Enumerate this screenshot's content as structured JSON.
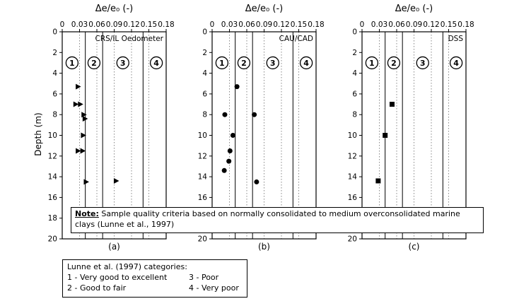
{
  "figure": {
    "ylabel": "Depth (m)",
    "note": {
      "prefix": "Note:",
      "text": " Sample quality criteria based on normally consolidated to medium overconsolidated marine clays (Lunne et al., 1997)"
    },
    "legend": {
      "title": "Lunne et al. (1997) categories:",
      "items": [
        "1 - Very good to excellent",
        "2 - Good to fair",
        "3 - Poor",
        "4 - Very poor"
      ]
    }
  },
  "chart_data": [
    {
      "type": "scatter",
      "panel": "a",
      "caption": "(a)",
      "title": "Δe/e₀ (-)",
      "dataset_label": "CRS/IL Oedometer",
      "marker": "triangle-right",
      "xlabel": "Δe/e₀ (-)",
      "ylabel": "Depth (m)",
      "xlim": [
        0,
        0.18
      ],
      "ylim": [
        0,
        20
      ],
      "xticks": [
        0,
        0.03,
        0.06,
        0.09,
        0.12,
        0.15,
        0.18
      ],
      "xtick_labels": [
        "0",
        "0.03",
        "0.06",
        "0.09",
        "0.12",
        "0.15",
        "0.18"
      ],
      "yticks": [
        0,
        2,
        4,
        6,
        8,
        10,
        12,
        14,
        16,
        18,
        20
      ],
      "grid": "vertical-dotted-at-ticks",
      "category_boundaries": [
        0.04,
        0.07,
        0.14
      ],
      "category_markers": [
        {
          "label": "1",
          "x": 0.017,
          "depth": 3
        },
        {
          "label": "2",
          "x": 0.055,
          "depth": 3
        },
        {
          "label": "3",
          "x": 0.105,
          "depth": 3
        },
        {
          "label": "4",
          "x": 0.163,
          "depth": 3
        }
      ],
      "points": [
        {
          "x": 0.027,
          "depth": 5.3
        },
        {
          "x": 0.023,
          "depth": 7.0
        },
        {
          "x": 0.031,
          "depth": 7.0
        },
        {
          "x": 0.037,
          "depth": 8.0
        },
        {
          "x": 0.039,
          "depth": 8.4
        },
        {
          "x": 0.036,
          "depth": 10.0
        },
        {
          "x": 0.027,
          "depth": 11.5
        },
        {
          "x": 0.035,
          "depth": 11.5
        },
        {
          "x": 0.041,
          "depth": 14.5
        },
        {
          "x": 0.093,
          "depth": 14.4
        }
      ]
    },
    {
      "type": "scatter",
      "panel": "b",
      "caption": "(b)",
      "title": "Δe/e₀ (-)",
      "dataset_label": "CAU/CAD",
      "marker": "circle",
      "xlabel": "Δe/e₀ (-)",
      "ylabel": "Depth (m)",
      "xlim": [
        0,
        0.18
      ],
      "ylim": [
        0,
        20
      ],
      "xticks": [
        0,
        0.03,
        0.06,
        0.09,
        0.12,
        0.15,
        0.18
      ],
      "xtick_labels": [
        "0",
        "0.03",
        "0.06",
        "0.09",
        "0.12",
        "0.15",
        "0.18"
      ],
      "yticks": [
        0,
        2,
        4,
        6,
        8,
        10,
        12,
        14,
        16,
        18,
        20
      ],
      "grid": "vertical-dotted-at-ticks",
      "category_boundaries": [
        0.04,
        0.07,
        0.14
      ],
      "category_markers": [
        {
          "label": "1",
          "x": 0.017,
          "depth": 3
        },
        {
          "label": "2",
          "x": 0.055,
          "depth": 3
        },
        {
          "label": "3",
          "x": 0.105,
          "depth": 3
        },
        {
          "label": "4",
          "x": 0.163,
          "depth": 3
        }
      ],
      "points": [
        {
          "x": 0.043,
          "depth": 5.3
        },
        {
          "x": 0.022,
          "depth": 8.0
        },
        {
          "x": 0.073,
          "depth": 8.0
        },
        {
          "x": 0.036,
          "depth": 10.0
        },
        {
          "x": 0.031,
          "depth": 11.5
        },
        {
          "x": 0.029,
          "depth": 12.5
        },
        {
          "x": 0.021,
          "depth": 13.4
        },
        {
          "x": 0.077,
          "depth": 14.5
        }
      ]
    },
    {
      "type": "scatter",
      "panel": "c",
      "caption": "(c)",
      "title": "Δe/e₀ (-)",
      "dataset_label": "DSS",
      "marker": "square",
      "xlabel": "Δe/e₀ (-)",
      "ylabel": "Depth (m)",
      "xlim": [
        0,
        0.18
      ],
      "ylim": [
        0,
        20
      ],
      "xticks": [
        0,
        0.03,
        0.06,
        0.09,
        0.12,
        0.15,
        0.18
      ],
      "xtick_labels": [
        "0",
        "0.03",
        "0.06",
        "0.09",
        "0.12",
        "0.15",
        "0.18"
      ],
      "yticks": [
        0,
        2,
        4,
        6,
        8,
        10,
        12,
        14,
        16,
        18,
        20
      ],
      "grid": "vertical-dotted-at-ticks",
      "category_boundaries": [
        0.04,
        0.07,
        0.14
      ],
      "category_markers": [
        {
          "label": "1",
          "x": 0.017,
          "depth": 3
        },
        {
          "label": "2",
          "x": 0.055,
          "depth": 3
        },
        {
          "label": "3",
          "x": 0.105,
          "depth": 3
        },
        {
          "label": "4",
          "x": 0.163,
          "depth": 3
        }
      ],
      "points": [
        {
          "x": 0.052,
          "depth": 7.0
        },
        {
          "x": 0.04,
          "depth": 10.0
        },
        {
          "x": 0.028,
          "depth": 14.4
        }
      ]
    }
  ]
}
